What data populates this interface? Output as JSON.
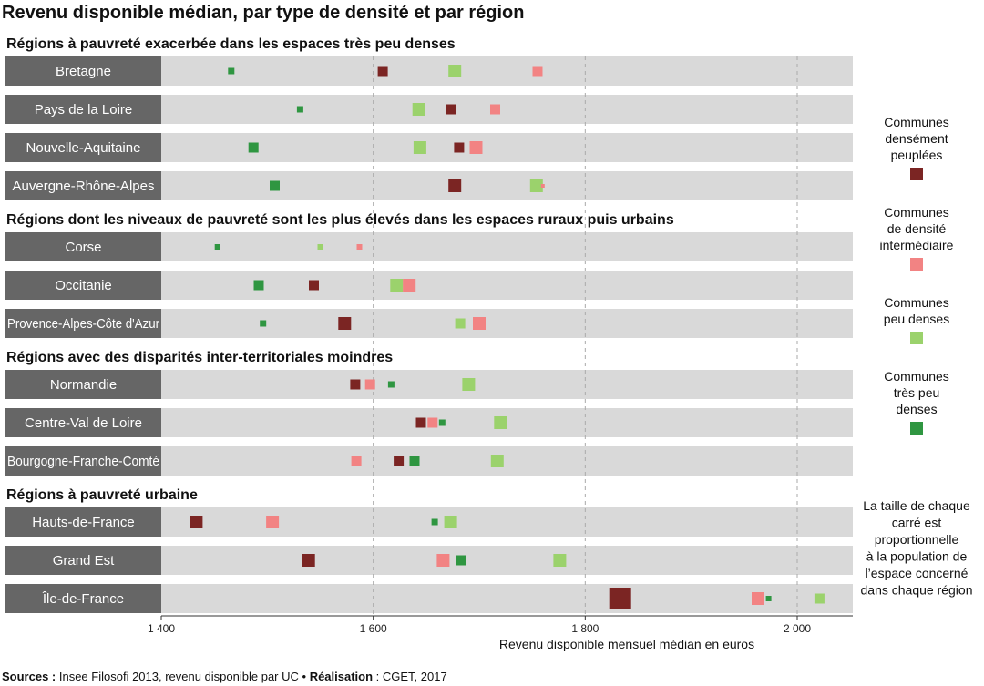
{
  "chart_data": {
    "type": "scatter",
    "title": "Revenu disponible médian, par type de densité et par région",
    "xlabel": "Revenu disponible mensuel médian en euros",
    "xlim": [
      1400,
      2025
    ],
    "xticks": [
      {
        "value": 1400,
        "label": "1 400"
      },
      {
        "value": 1600,
        "label": "1 600"
      },
      {
        "value": 1800,
        "label": "1 800"
      },
      {
        "value": 2000,
        "label": "2 000"
      }
    ],
    "grid": "vertical dashed at 1600, 1800, 2000",
    "series": [
      {
        "key": "dense",
        "name": "Communes densément peuplées",
        "color": "#7b2523"
      },
      {
        "key": "intermediaire",
        "name": "Communes de densité intermédiaire",
        "color": "#f28383"
      },
      {
        "key": "peu_dense",
        "name": "Communes peu denses",
        "color": "#9bd26c"
      },
      {
        "key": "tres_peu_dense",
        "name": "Communes très peu denses",
        "color": "#2f9641"
      }
    ],
    "legend": {
      "items": [
        {
          "series": "dense",
          "lines": [
            "Communes",
            "densément",
            "peuplées"
          ]
        },
        {
          "series": "intermediaire",
          "lines": [
            "Communes",
            "de densité",
            "intermédiaire"
          ]
        },
        {
          "series": "peu_dense",
          "lines": [
            "Communes",
            "peu denses"
          ]
        },
        {
          "series": "tres_peu_dense",
          "lines": [
            "Communes",
            "très peu",
            "denses"
          ]
        }
      ],
      "note_lines": [
        "La taille de chaque",
        "carré est",
        "proportionnelle",
        "à la population de",
        "l’espace concerné",
        "dans chaque région"
      ],
      "placement": "right"
    },
    "groups": [
      {
        "title": "Régions à pauvreté exacerbée dans les espaces très peu denses",
        "regions": [
          {
            "name": "Bretagne",
            "points": [
              {
                "series": "tres_peu_dense",
                "value": 1466,
                "size": "small"
              },
              {
                "series": "dense",
                "value": 1609,
                "size": "medium"
              },
              {
                "series": "peu_dense",
                "value": 1677,
                "size": "large"
              },
              {
                "series": "intermediaire",
                "value": 1755,
                "size": "medium"
              }
            ]
          },
          {
            "name": "Pays de la Loire",
            "points": [
              {
                "series": "tres_peu_dense",
                "value": 1531,
                "size": "small"
              },
              {
                "series": "peu_dense",
                "value": 1643,
                "size": "large"
              },
              {
                "series": "dense",
                "value": 1673,
                "size": "medium"
              },
              {
                "series": "intermediaire",
                "value": 1715,
                "size": "medium"
              }
            ]
          },
          {
            "name": "Nouvelle-Aquitaine",
            "points": [
              {
                "series": "tres_peu_dense",
                "value": 1487,
                "size": "medium"
              },
              {
                "series": "peu_dense",
                "value": 1644,
                "size": "large"
              },
              {
                "series": "dense",
                "value": 1681,
                "size": "medium"
              },
              {
                "series": "intermediaire",
                "value": 1697,
                "size": "large"
              }
            ]
          },
          {
            "name": "Auvergne-Rhône-Alpes",
            "points": [
              {
                "series": "tres_peu_dense",
                "value": 1507,
                "size": "medium"
              },
              {
                "series": "dense",
                "value": 1677,
                "size": "large"
              },
              {
                "series": "peu_dense",
                "value": 1754,
                "size": "large"
              },
              {
                "series": "intermediaire",
                "value": 1760,
                "size": "thin"
              }
            ]
          }
        ]
      },
      {
        "title": "Régions dont les niveaux de pauvreté sont les plus élevés dans les espaces ruraux puis urbains",
        "regions": [
          {
            "name": "Corse",
            "points": [
              {
                "series": "tres_peu_dense",
                "value": 1453,
                "size": "tiny"
              },
              {
                "series": "peu_dense",
                "value": 1550,
                "size": "tiny"
              },
              {
                "series": "intermediaire",
                "value": 1587,
                "size": "tiny"
              }
            ]
          },
          {
            "name": "Occitanie",
            "points": [
              {
                "series": "tres_peu_dense",
                "value": 1492,
                "size": "medium"
              },
              {
                "series": "dense",
                "value": 1544,
                "size": "medium"
              },
              {
                "series": "peu_dense",
                "value": 1622,
                "size": "large"
              },
              {
                "series": "intermediaire",
                "value": 1634,
                "size": "large"
              }
            ]
          },
          {
            "name": "Provence-Alpes-Côte d'Azur",
            "points": [
              {
                "series": "tres_peu_dense",
                "value": 1496,
                "size": "small"
              },
              {
                "series": "dense",
                "value": 1573,
                "size": "large"
              },
              {
                "series": "peu_dense",
                "value": 1682,
                "size": "medium"
              },
              {
                "series": "intermediaire",
                "value": 1700,
                "size": "large"
              }
            ]
          }
        ]
      },
      {
        "title": "Régions avec des disparités inter-territoriales moindres",
        "regions": [
          {
            "name": "Normandie",
            "points": [
              {
                "series": "dense",
                "value": 1583,
                "size": "medium"
              },
              {
                "series": "intermediaire",
                "value": 1597,
                "size": "medium"
              },
              {
                "series": "tres_peu_dense",
                "value": 1617,
                "size": "small"
              },
              {
                "series": "peu_dense",
                "value": 1690,
                "size": "large"
              }
            ]
          },
          {
            "name": "Centre-Val de Loire",
            "points": [
              {
                "series": "dense",
                "value": 1645,
                "size": "medium"
              },
              {
                "series": "intermediaire",
                "value": 1656,
                "size": "medium"
              },
              {
                "series": "tres_peu_dense",
                "value": 1665,
                "size": "small"
              },
              {
                "series": "peu_dense",
                "value": 1720,
                "size": "large"
              }
            ]
          },
          {
            "name": "Bourgogne-Franche-Comté",
            "points": [
              {
                "series": "intermediaire",
                "value": 1584,
                "size": "medium"
              },
              {
                "series": "dense",
                "value": 1624,
                "size": "medium"
              },
              {
                "series": "tres_peu_dense",
                "value": 1639,
                "size": "medium"
              },
              {
                "series": "peu_dense",
                "value": 1717,
                "size": "large"
              }
            ]
          }
        ]
      },
      {
        "title": "Régions à pauvreté urbaine",
        "regions": [
          {
            "name": "Hauts-de-France",
            "points": [
              {
                "series": "dense",
                "value": 1433,
                "size": "large"
              },
              {
                "series": "intermediaire",
                "value": 1505,
                "size": "large"
              },
              {
                "series": "tres_peu_dense",
                "value": 1658,
                "size": "small"
              },
              {
                "series": "peu_dense",
                "value": 1673,
                "size": "large"
              }
            ]
          },
          {
            "name": "Grand Est",
            "points": [
              {
                "series": "dense",
                "value": 1539,
                "size": "large"
              },
              {
                "series": "intermediaire",
                "value": 1666,
                "size": "large"
              },
              {
                "series": "tres_peu_dense",
                "value": 1683,
                "size": "medium"
              },
              {
                "series": "peu_dense",
                "value": 1776,
                "size": "large"
              }
            ]
          },
          {
            "name": "Île-de-France",
            "points": [
              {
                "series": "dense",
                "value": 1833,
                "size": "xlarge"
              },
              {
                "series": "intermediaire",
                "value": 1963,
                "size": "large"
              },
              {
                "series": "tres_peu_dense",
                "value": 1973,
                "size": "tiny"
              },
              {
                "series": "peu_dense",
                "value": 2021,
                "size": "medium"
              }
            ]
          }
        ]
      }
    ]
  },
  "source": {
    "sources_label": "Sources :",
    "sources_text": " Insee Filosofi 2013, revenu disponible par UC • ",
    "realisation_label": "Réalisation",
    "realisation_text": " : CGET, 2017"
  }
}
